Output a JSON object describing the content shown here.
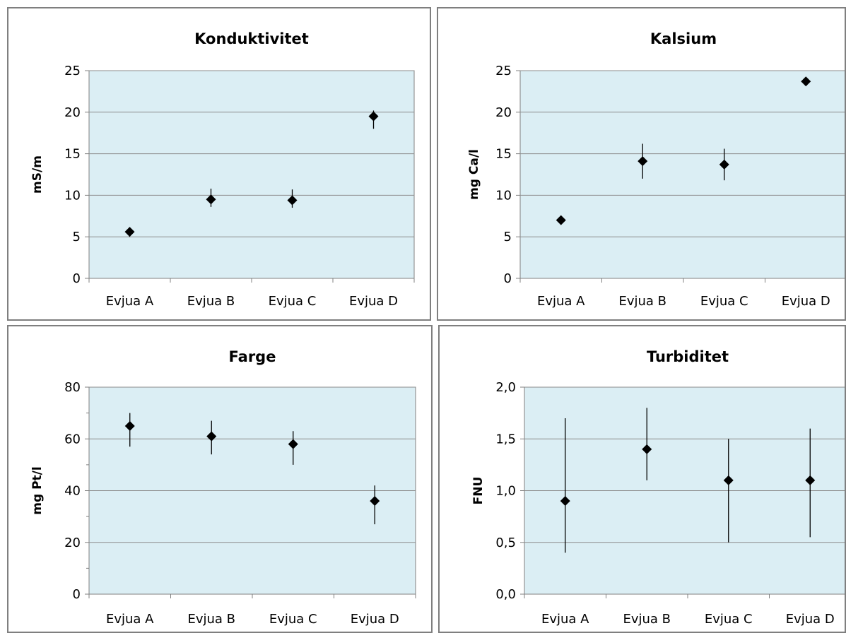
{
  "charts": [
    {
      "id": "konduktivitet",
      "title": "Konduktivitet",
      "ylabel": "mS/m",
      "ylim": [
        0,
        25
      ],
      "yticks": [
        0,
        5,
        10,
        15,
        20,
        25
      ],
      "ytick_labels": [
        "0",
        "5",
        "10",
        "15",
        "20",
        "25"
      ],
      "minor_step": 0,
      "categories": [
        "Evjua A",
        "Evjua B",
        "Evjua C",
        "Evjua D"
      ],
      "values": [
        5.6,
        9.5,
        9.4,
        19.5
      ],
      "err_low": [
        5.0,
        8.6,
        8.5,
        18.0
      ],
      "err_high": [
        5.8,
        10.8,
        10.7,
        20.2
      ]
    },
    {
      "id": "kalsium",
      "title": "Kalsium",
      "ylabel": "mg Ca/l",
      "ylim": [
        0,
        25
      ],
      "yticks": [
        0,
        5,
        10,
        15,
        20,
        25
      ],
      "ytick_labels": [
        "0",
        "5",
        "10",
        "15",
        "20",
        "25"
      ],
      "minor_step": 0,
      "categories": [
        "Evjua A",
        "Evjua B",
        "Evjua C",
        "Evjua D"
      ],
      "values": [
        7.0,
        14.1,
        13.7,
        23.7
      ],
      "err_low": [
        6.8,
        12.0,
        11.8,
        23.5
      ],
      "err_high": [
        7.2,
        16.2,
        15.6,
        24.0
      ]
    },
    {
      "id": "farge",
      "title": "Farge",
      "ylabel": "mg Pt/l",
      "ylim": [
        0,
        80
      ],
      "yticks": [
        0,
        20,
        40,
        60,
        80
      ],
      "ytick_labels": [
        "0",
        "20",
        "40",
        "60",
        "80"
      ],
      "minor_step": 10,
      "categories": [
        "Evjua A",
        "Evjua B",
        "Evjua C",
        "Evjua D"
      ],
      "values": [
        65,
        61,
        58,
        36
      ],
      "err_low": [
        57,
        54,
        50,
        27
      ],
      "err_high": [
        70,
        67,
        63,
        42
      ]
    },
    {
      "id": "turbiditet",
      "title": "Turbiditet",
      "ylabel": "FNU",
      "ylim": [
        0,
        2.0
      ],
      "yticks": [
        0,
        0.5,
        1.0,
        1.5,
        2.0
      ],
      "ytick_labels": [
        "0,0",
        "0,5",
        "1,0",
        "1,5",
        "2,0"
      ],
      "minor_step": 0,
      "categories": [
        "Evjua A",
        "Evjua B",
        "Evjua C",
        "Evjua D"
      ],
      "values": [
        0.9,
        1.4,
        1.1,
        1.1
      ],
      "err_low": [
        0.4,
        1.1,
        0.5,
        0.55
      ],
      "err_high": [
        1.7,
        1.8,
        1.5,
        1.6
      ]
    }
  ],
  "chart_data": [
    {
      "type": "scatter",
      "title": "Konduktivitet",
      "ylabel": "mS/m",
      "xlabel": "",
      "categories": [
        "Evjua A",
        "Evjua B",
        "Evjua C",
        "Evjua D"
      ],
      "values": [
        5.6,
        9.5,
        9.4,
        19.5
      ],
      "error_range": [
        [
          5.0,
          5.8
        ],
        [
          8.6,
          10.8
        ],
        [
          8.5,
          10.7
        ],
        [
          18.0,
          20.2
        ]
      ],
      "ylim": [
        0,
        25
      ],
      "grid": true
    },
    {
      "type": "scatter",
      "title": "Kalsium",
      "ylabel": "mg Ca/l",
      "xlabel": "",
      "categories": [
        "Evjua A",
        "Evjua B",
        "Evjua C",
        "Evjua D"
      ],
      "values": [
        7.0,
        14.1,
        13.7,
        23.7
      ],
      "error_range": [
        [
          6.8,
          7.2
        ],
        [
          12.0,
          16.2
        ],
        [
          11.8,
          15.6
        ],
        [
          23.5,
          24.0
        ]
      ],
      "ylim": [
        0,
        25
      ],
      "grid": true
    },
    {
      "type": "scatter",
      "title": "Farge",
      "ylabel": "mg Pt/l",
      "xlabel": "",
      "categories": [
        "Evjua A",
        "Evjua B",
        "Evjua C",
        "Evjua D"
      ],
      "values": [
        65,
        61,
        58,
        36
      ],
      "error_range": [
        [
          57,
          70
        ],
        [
          54,
          67
        ],
        [
          50,
          63
        ],
        [
          27,
          42
        ]
      ],
      "ylim": [
        0,
        80
      ],
      "grid": true
    },
    {
      "type": "scatter",
      "title": "Turbiditet",
      "ylabel": "FNU",
      "xlabel": "",
      "categories": [
        "Evjua A",
        "Evjua B",
        "Evjua C",
        "Evjua D"
      ],
      "values": [
        0.9,
        1.4,
        1.1,
        1.1
      ],
      "error_range": [
        [
          0.4,
          1.7
        ],
        [
          1.1,
          1.8
        ],
        [
          0.5,
          1.5
        ],
        [
          0.55,
          1.6
        ]
      ],
      "ylim": [
        0,
        2.0
      ],
      "grid": true
    }
  ],
  "colors": {
    "plot_background": "#dbeef4",
    "gridline": "#8c8c8c",
    "marker": "#000000",
    "panel_border": "#7f7f7f"
  }
}
